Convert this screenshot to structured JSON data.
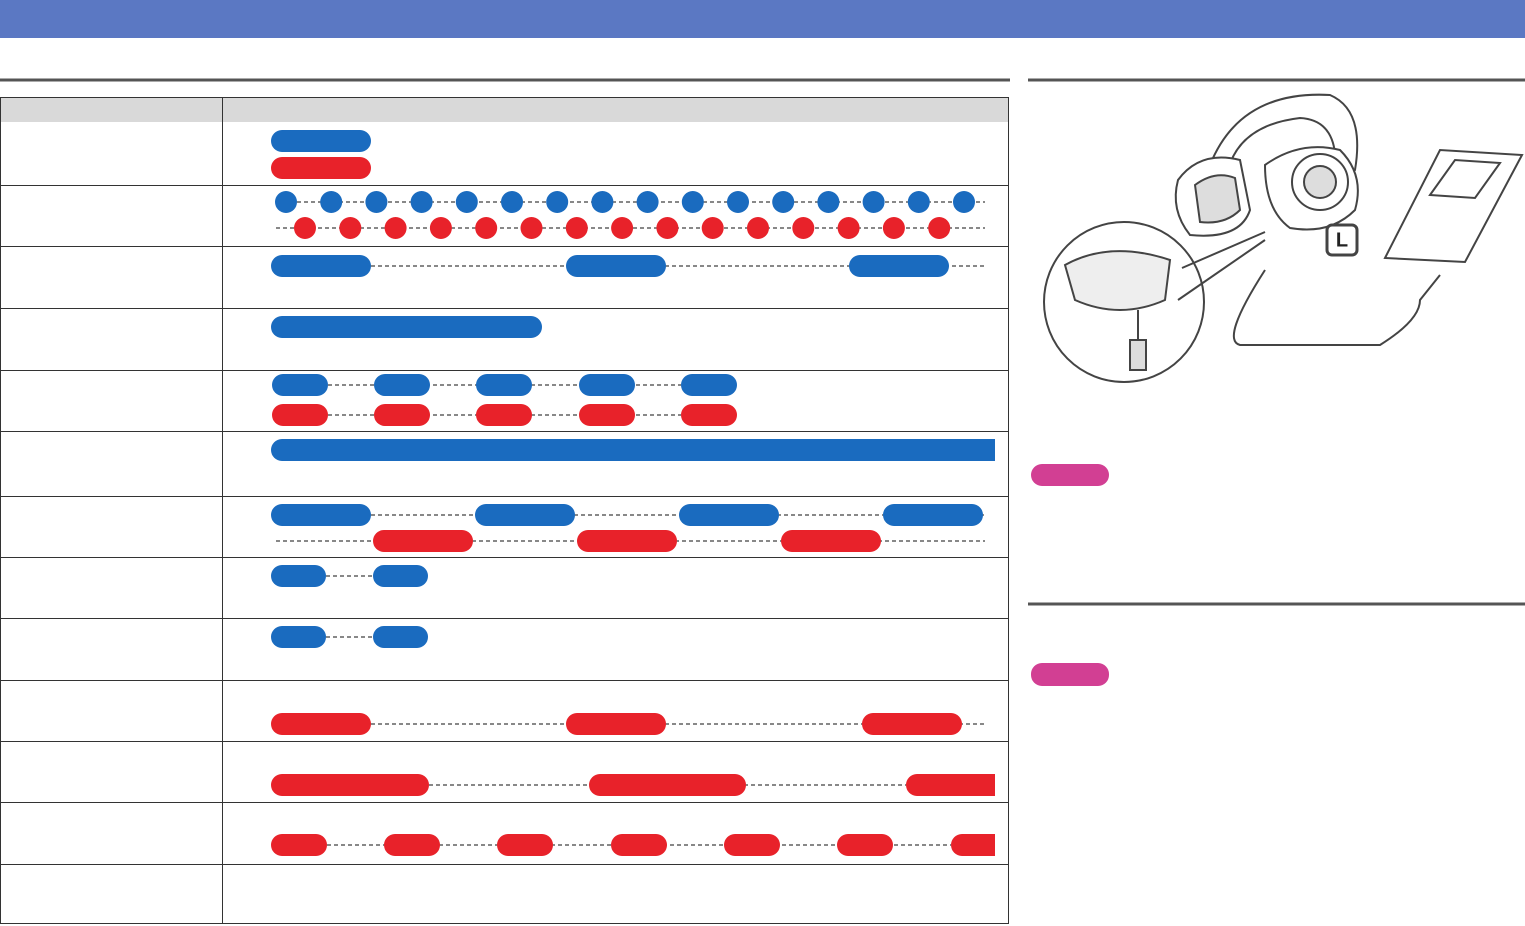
{
  "illustration": {
    "label": "L"
  }
}
